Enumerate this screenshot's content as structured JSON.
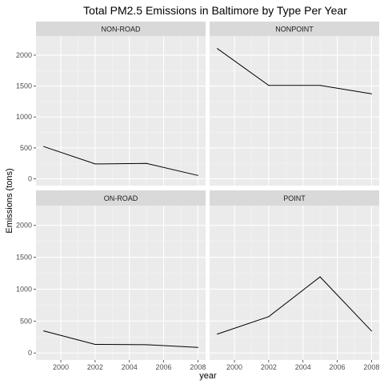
{
  "chart_data": {
    "type": "line",
    "title": "Total PM2.5 Emissions in Baltimore by Type Per Year",
    "xlabel": "year",
    "ylabel": "Emissions (tons)",
    "x": [
      1999,
      2002,
      2005,
      2008
    ],
    "x_ticks": [
      2000,
      2002,
      2004,
      2006,
      2008
    ],
    "y_ticks": [
      0,
      500,
      1000,
      1500,
      2000
    ],
    "xlim": [
      1998.55,
      2008.45
    ],
    "ylim": [
      -110,
      2310
    ],
    "grid": true,
    "facets": [
      {
        "label": "NON-ROAD",
        "values": [
          522,
          241,
          249,
          55
        ]
      },
      {
        "label": "NONPOINT",
        "values": [
          2107,
          1510,
          1510,
          1374
        ]
      },
      {
        "label": "ON-ROAD",
        "values": [
          346,
          134,
          130,
          88
        ]
      },
      {
        "label": "POINT",
        "values": [
          296,
          569,
          1193,
          345
        ]
      }
    ],
    "colors": {
      "panel_bg": "#ebebeb",
      "strip_bg": "#d9d9d9",
      "grid_major": "#ffffff",
      "line": "#000000",
      "tick_text": "#4d4d4d",
      "text": "#000000"
    }
  }
}
